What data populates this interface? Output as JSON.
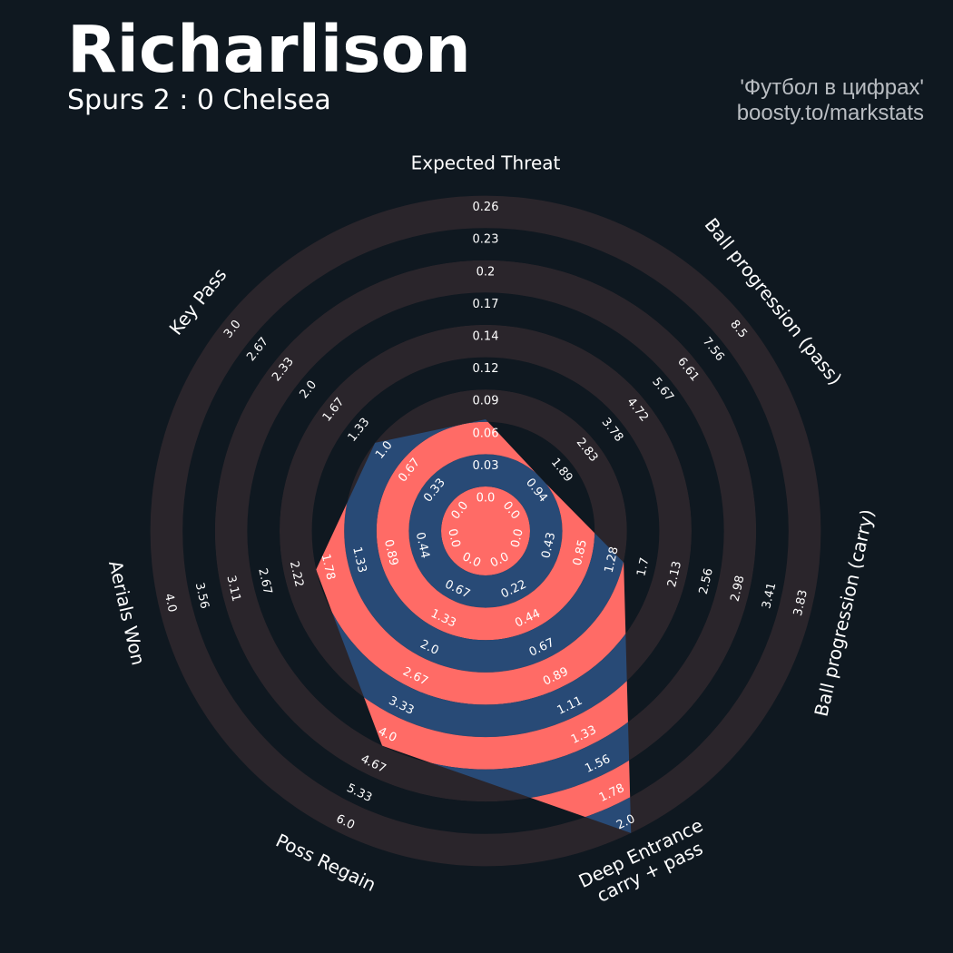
{
  "header": {
    "title": "Richarlison",
    "subtitle": "Spurs 2 : 0 Chelsea",
    "credit_line1": "'Футбол в цифрах'",
    "credit_line2": "boosty.to/markstats"
  },
  "colors": {
    "background": "#0f1820",
    "outer_ring": "#2a252b",
    "inner_band_a": "#ff6b66",
    "inner_band_b": "#284a76",
    "label_text": "#ffffff"
  },
  "chart_data": {
    "type": "radar",
    "title": "Richarlison",
    "subtitle": "Spurs 2 : 0 Chelsea",
    "params": [
      {
        "name": "Expected Threat",
        "min": 0.0,
        "max": 0.26,
        "ticks": [
          "0.0",
          "0.03",
          "0.06",
          "0.09",
          "0.12",
          "0.14",
          "0.17",
          "0.2",
          "0.23",
          "0.26"
        ],
        "value": 0.06
      },
      {
        "name": "Ball progression (pass)",
        "min": 0.0,
        "max": 8.5,
        "ticks": [
          "0.0",
          "0.94",
          "1.89",
          "2.83",
          "3.78",
          "4.72",
          "5.67",
          "6.61",
          "7.56",
          "8.5"
        ],
        "value": 0.94
      },
      {
        "name": "Ball progression (carry)",
        "min": 0.0,
        "max": 3.83,
        "ticks": [
          "0.0",
          "0.43",
          "0.85",
          "1.28",
          "1.7",
          "2.13",
          "2.56",
          "2.98",
          "3.41",
          "3.83"
        ],
        "value": 1.28
      },
      {
        "name": "Deep Entrance\ncarry + pass",
        "min": 0.0,
        "max": 2.0,
        "ticks": [
          "0.0",
          "0.22",
          "0.44",
          "0.67",
          "0.89",
          "1.11",
          "1.33",
          "1.56",
          "1.78",
          "2.0"
        ],
        "value": 2.0
      },
      {
        "name": "Poss Regain",
        "min": 0.0,
        "max": 6.0,
        "ticks": [
          "0.0",
          "0.67",
          "1.33",
          "2.0",
          "2.67",
          "3.33",
          "4.0",
          "4.67",
          "5.33",
          "6.0"
        ],
        "value": 4.0
      },
      {
        "name": "Aerials Won",
        "min": 0.0,
        "max": 4.0,
        "ticks": [
          "0.0",
          "0.44",
          "0.89",
          "1.33",
          "1.78",
          "2.22",
          "2.67",
          "3.11",
          "3.56",
          "4.0"
        ],
        "value": 1.78
      },
      {
        "name": "Key Pass",
        "min": 0.0,
        "max": 3.0,
        "ticks": [
          "0.0",
          "0.33",
          "0.67",
          "1.0",
          "1.33",
          "1.67",
          "2.0",
          "2.33",
          "2.67",
          "3.0"
        ],
        "value": 1.0
      }
    ]
  }
}
